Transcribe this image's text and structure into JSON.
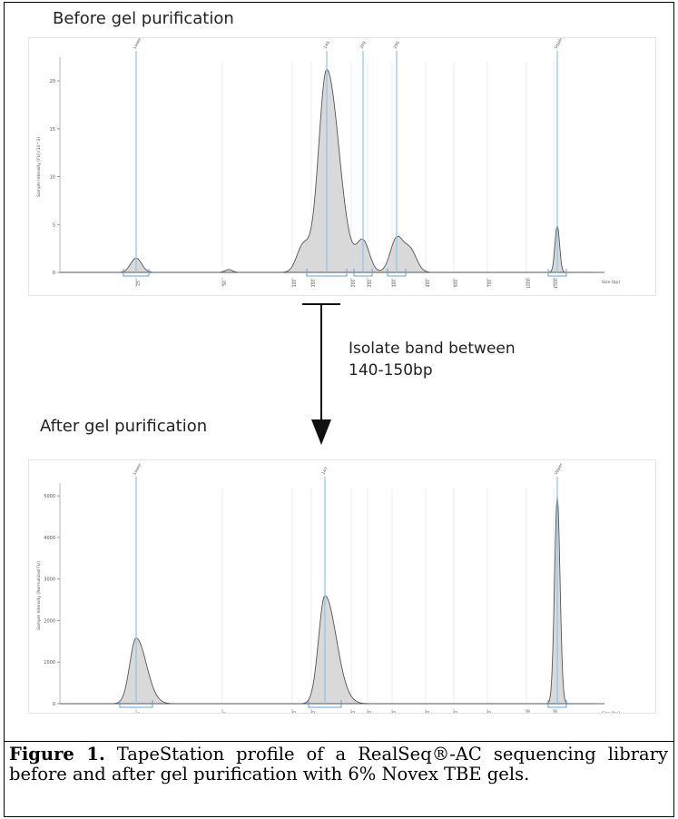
{
  "headings": {
    "before": "Before gel purification",
    "after": "After gel purification"
  },
  "arrow": {
    "label_line1": "Isolate band between",
    "label_line2": "140-150bp"
  },
  "caption": {
    "bold": "Figure 1.",
    "text": " TapeStation profile of a RealSeq®-AC sequencing library before and after gel purification with 6% Novex TBE gels."
  },
  "colors": {
    "trace": "#555555",
    "fill": "#d9d9d9",
    "marker": "#8fc3ea",
    "region": "#5aa0e0",
    "grid": "#ececec"
  },
  "chart_data": [
    {
      "type": "area",
      "title": "",
      "xlabel": "Size [bp]",
      "ylabel": "Sample Intensity [FU] (10^3)",
      "y_ticks": [
        "0",
        "5",
        "10",
        "15",
        "20"
      ],
      "ylim": [
        0,
        22
      ],
      "x_ticks": [
        "25",
        "50",
        "100",
        "150",
        "200",
        "250",
        "300",
        "400",
        "500",
        "700",
        "1000",
        "1500"
      ],
      "peak_labels": [
        "Lower",
        "149",
        "209",
        "299",
        "Upper"
      ],
      "peaks": [
        {
          "size_bp": 25,
          "intensity": 1.5,
          "label": "Lower"
        },
        {
          "size_bp": 60,
          "intensity": 0.3,
          "label": ""
        },
        {
          "size_bp": 122,
          "intensity": 2.8,
          "label": ""
        },
        {
          "size_bp": 149,
          "intensity": 21.2,
          "label": "149"
        },
        {
          "size_bp": 209,
          "intensity": 3.2,
          "label": "209"
        },
        {
          "size_bp": 299,
          "intensity": 3.5,
          "label": "299"
        },
        {
          "size_bp": 340,
          "intensity": 2.3,
          "label": ""
        },
        {
          "size_bp": 1500,
          "intensity": 4.9,
          "label": "Upper"
        }
      ],
      "grid": true
    },
    {
      "type": "area",
      "title": "",
      "xlabel": "Size [bp]",
      "ylabel": "Sample Intensity [Normalized FU]",
      "y_ticks": [
        "0",
        "1000",
        "2000",
        "3000",
        "4000",
        "5000"
      ],
      "ylim": [
        0,
        5200
      ],
      "x_ticks": [
        "25",
        "50",
        "100",
        "150",
        "200",
        "250",
        "300",
        "400",
        "500",
        "700",
        "1000",
        "1500"
      ],
      "peak_labels": [
        "Lower",
        "147",
        "Upper"
      ],
      "peaks": [
        {
          "size_bp": 25,
          "intensity": 1580,
          "label": "Lower"
        },
        {
          "size_bp": 147,
          "intensity": 2600,
          "label": "147"
        },
        {
          "size_bp": 1500,
          "intensity": 5000,
          "label": "Upper"
        }
      ],
      "grid": true
    }
  ]
}
